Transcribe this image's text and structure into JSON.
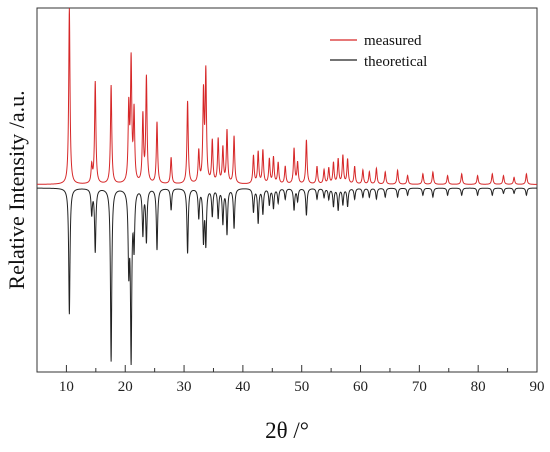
{
  "chart_data": {
    "type": "line",
    "xlabel": "2θ /°",
    "ylabel": "Relative Intensity /a.u.",
    "xlim": [
      5,
      90
    ],
    "xticks": [
      "10",
      "20",
      "30",
      "40",
      "50",
      "60",
      "70",
      "80",
      "90"
    ],
    "xtick_values": [
      10,
      20,
      30,
      40,
      50,
      60,
      70,
      80,
      90
    ],
    "y_tick_labels": false,
    "grid": false,
    "legend_position": "top-right",
    "colors": {
      "measured": "#d62728",
      "theoretical": "#222222"
    },
    "series": [
      {
        "name": "measured",
        "baseline": 0.02,
        "peaks": [
          [
            10.5,
            1.0
          ],
          [
            14.3,
            0.1
          ],
          [
            14.9,
            0.58
          ],
          [
            17.6,
            0.56
          ],
          [
            20.6,
            0.42
          ],
          [
            21.0,
            0.68
          ],
          [
            21.5,
            0.4
          ],
          [
            23.0,
            0.38
          ],
          [
            23.6,
            0.6
          ],
          [
            25.4,
            0.35
          ],
          [
            27.8,
            0.15
          ],
          [
            30.6,
            0.47
          ],
          [
            32.5,
            0.18
          ],
          [
            33.3,
            0.5
          ],
          [
            33.7,
            0.62
          ],
          [
            34.8,
            0.24
          ],
          [
            35.8,
            0.25
          ],
          [
            36.6,
            0.2
          ],
          [
            37.3,
            0.3
          ],
          [
            38.5,
            0.27
          ],
          [
            41.8,
            0.16
          ],
          [
            42.6,
            0.18
          ],
          [
            43.4,
            0.19
          ],
          [
            44.5,
            0.14
          ],
          [
            45.2,
            0.15
          ],
          [
            46.0,
            0.12
          ],
          [
            47.2,
            0.1
          ],
          [
            48.7,
            0.2
          ],
          [
            49.3,
            0.12
          ],
          [
            50.8,
            0.25
          ],
          [
            52.6,
            0.1
          ],
          [
            53.8,
            0.08
          ],
          [
            54.6,
            0.09
          ],
          [
            55.4,
            0.12
          ],
          [
            56.2,
            0.14
          ],
          [
            57.0,
            0.16
          ],
          [
            57.8,
            0.14
          ],
          [
            59.0,
            0.1
          ],
          [
            60.4,
            0.08
          ],
          [
            61.5,
            0.07
          ],
          [
            62.7,
            0.09
          ],
          [
            64.2,
            0.07
          ],
          [
            66.3,
            0.08
          ],
          [
            68.0,
            0.05
          ],
          [
            70.6,
            0.06
          ],
          [
            72.3,
            0.07
          ],
          [
            74.8,
            0.05
          ],
          [
            77.2,
            0.06
          ],
          [
            79.9,
            0.05
          ],
          [
            82.4,
            0.06
          ],
          [
            84.3,
            0.05
          ],
          [
            86.1,
            0.04
          ],
          [
            88.2,
            0.06
          ]
        ]
      },
      {
        "name": "theoretical",
        "baseline": 0.0,
        "peaks": [
          [
            10.5,
            0.7
          ],
          [
            14.3,
            0.14
          ],
          [
            14.9,
            0.35
          ],
          [
            17.6,
            0.96
          ],
          [
            20.6,
            0.42
          ],
          [
            21.0,
            0.92
          ],
          [
            21.5,
            0.3
          ],
          [
            23.0,
            0.25
          ],
          [
            23.6,
            0.29
          ],
          [
            25.4,
            0.34
          ],
          [
            27.8,
            0.12
          ],
          [
            30.6,
            0.36
          ],
          [
            32.5,
            0.16
          ],
          [
            33.3,
            0.28
          ],
          [
            33.7,
            0.3
          ],
          [
            34.8,
            0.15
          ],
          [
            35.8,
            0.16
          ],
          [
            36.6,
            0.19
          ],
          [
            37.3,
            0.25
          ],
          [
            38.5,
            0.22
          ],
          [
            41.8,
            0.13
          ],
          [
            42.6,
            0.19
          ],
          [
            43.4,
            0.14
          ],
          [
            44.5,
            0.09
          ],
          [
            45.2,
            0.11
          ],
          [
            46.0,
            0.08
          ],
          [
            47.2,
            0.06
          ],
          [
            48.7,
            0.12
          ],
          [
            49.3,
            0.07
          ],
          [
            50.8,
            0.15
          ],
          [
            52.6,
            0.06
          ],
          [
            53.8,
            0.05
          ],
          [
            54.6,
            0.06
          ],
          [
            55.4,
            0.1
          ],
          [
            56.2,
            0.12
          ],
          [
            57.0,
            0.09
          ],
          [
            57.8,
            0.1
          ],
          [
            59.0,
            0.06
          ],
          [
            60.4,
            0.05
          ],
          [
            61.5,
            0.05
          ],
          [
            62.7,
            0.06
          ],
          [
            64.2,
            0.05
          ],
          [
            66.3,
            0.05
          ],
          [
            68.0,
            0.04
          ],
          [
            70.6,
            0.04
          ],
          [
            72.3,
            0.05
          ],
          [
            74.8,
            0.04
          ],
          [
            77.2,
            0.04
          ],
          [
            79.9,
            0.04
          ],
          [
            82.4,
            0.04
          ],
          [
            84.3,
            0.03
          ],
          [
            86.1,
            0.03
          ],
          [
            88.2,
            0.04
          ]
        ]
      }
    ]
  }
}
